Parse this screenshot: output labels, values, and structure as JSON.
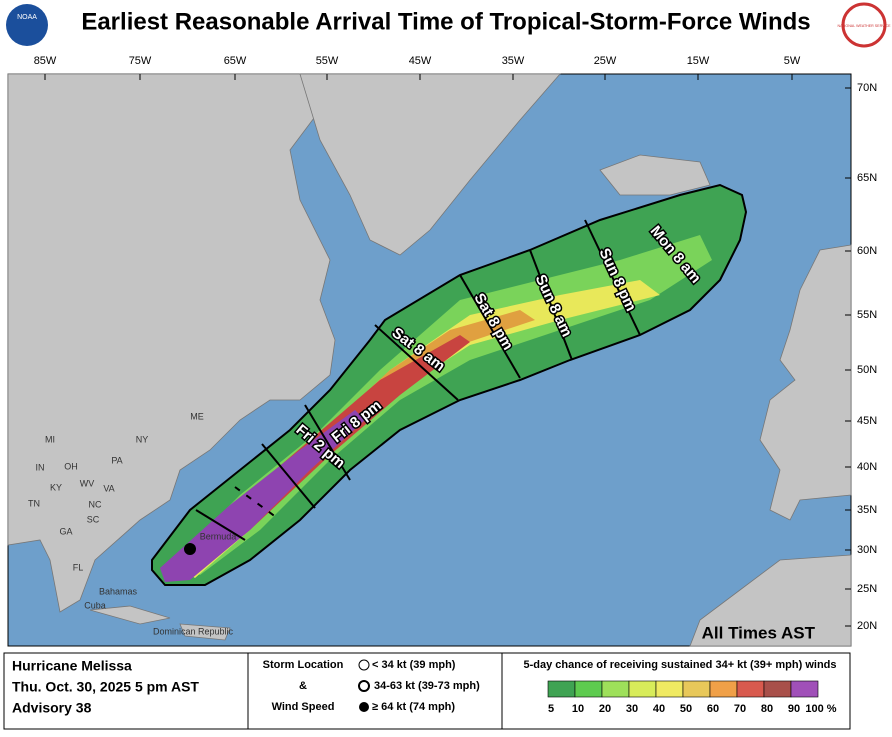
{
  "header": {
    "title": "Earliest Reasonable Arrival Time of Tropical-Storm-Force Winds",
    "left_logo": "NOAA",
    "right_logo": "NATIONAL WEATHER SERVICE"
  },
  "map": {
    "lon_labels": [
      "85W",
      "75W",
      "65W",
      "55W",
      "45W",
      "35W",
      "25W",
      "15W",
      "5W"
    ],
    "lat_labels": [
      "70N",
      "65N",
      "60N",
      "55N",
      "50N",
      "45N",
      "40N",
      "35N",
      "30N",
      "25N",
      "20N"
    ],
    "time_labels": [
      "Fri 2 pm",
      "Fri 8 pm",
      "Sat 8 am",
      "Sat 8 pm",
      "Sun 8 am",
      "Sun 8 pm",
      "Mon 8 am"
    ],
    "places": [
      "ME",
      "NY",
      "MI",
      "PA",
      "OH",
      "IN",
      "WV",
      "VA",
      "KY",
      "TN",
      "NC",
      "SC",
      "GA",
      "FL",
      "Bermuda",
      "Bahamas",
      "Cuba",
      "Dominican Republic"
    ],
    "time_zone_note": "All Times AST"
  },
  "footer": {
    "storm": "Hurricane Melissa",
    "date": "Thu. Oct. 30, 2025  5 pm AST",
    "advisory": "Advisory 38",
    "key_title": [
      "Storm Location",
      "&",
      "Wind Speed"
    ],
    "key_items": [
      "< 34 kt (39 mph)",
      "34-63 kt (39-73 mph)",
      "≥ 64 kt (74 mph)"
    ],
    "scale_title": "5-day chance of receiving sustained 34+ kt (39+ mph) winds",
    "scale_labels": [
      "5",
      "10",
      "20",
      "30",
      "40",
      "50",
      "60",
      "70",
      "80",
      "90",
      "100 %"
    ]
  }
}
